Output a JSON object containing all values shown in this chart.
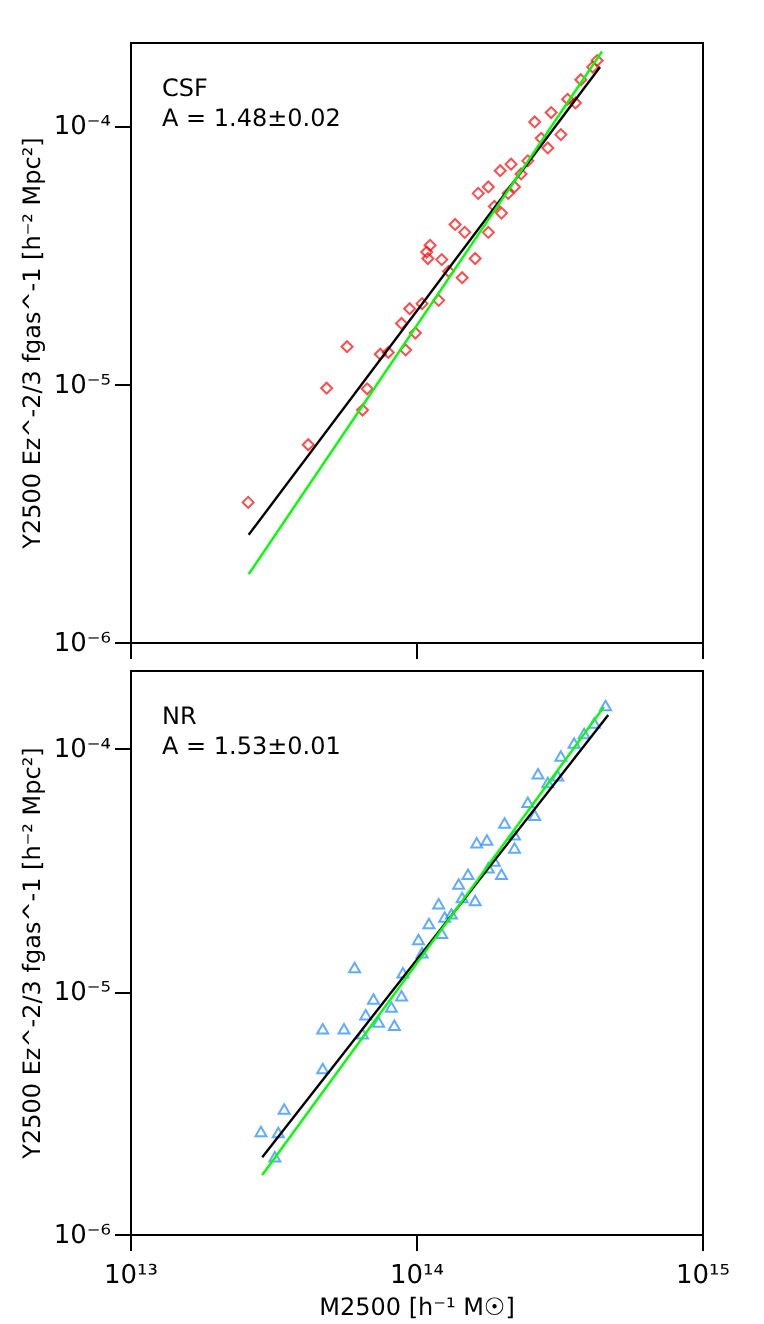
{
  "chart_data": [
    {
      "type": "scatter",
      "annotations": [
        "CSF",
        "A = 1.48±0.02"
      ],
      "ylabel": "Y2500 Ez^-2/3 fgas^-1 [h⁻² Mpc²]",
      "xlim": [
        10000000000000.0,
        1000000000000000.0
      ],
      "ylim": [
        1e-06,
        0.00021
      ],
      "log": "xy",
      "grid": false,
      "legend": false,
      "tick_labels": "y",
      "xticks": [
        10000000000000.0,
        100000000000000.0,
        1000000000000000.0
      ],
      "yticks": [
        {
          "value": 1e-06,
          "label": "10⁻⁶"
        },
        {
          "value": 1e-05,
          "label": "10⁻⁵"
        },
        {
          "value": 0.0001,
          "label": "10⁻⁴"
        }
      ],
      "series": [
        {
          "marker": "diamond",
          "color": "#ff0000",
          "x": [
            25900000000000.0,
            42000000000000.0,
            48700000000000.0,
            57400000000000.0,
            65000000000000.0,
            67500000000000.0,
            75000000000000.0,
            92000000000000.0,
            80000000000000.0,
            99500000000000.0,
            95000000000000.0,
            109000000000000.0,
            112000000000000.0,
            110000000000000.0,
            123000000000000.0,
            137000000000000.0,
            145000000000000.0,
            120000000000000.0,
            165000000000000.0,
            197000000000000.0,
            210000000000000.0,
            179000000000000.0,
            161000000000000.0,
            199000000000000.0,
            221000000000000.0,
            246000000000000.0,
            260000000000000.0,
            274000000000000.0,
            297000000000000.0,
            321000000000000.0,
            339000000000000.0,
            361000000000000.0,
            377000000000000.0,
            430000000000000.0,
            415000000000000.0,
            233000000000000.0,
            188000000000000.0,
            148000000000000.0,
            130000000000000.0,
            105000000000000.0,
            89000000000000.0,
            289000000000000.0,
            179000000000000.0,
            215000000000000.0
          ],
          "values": [
            3.47e-06,
            5.8e-06,
            9.6e-06,
            1.39e-05,
            7.9e-06,
            9.55e-06,
            1.3e-05,
            1.35e-05,
            1.32e-05,
            1.57e-05,
            1.95e-05,
            3.23e-05,
            3.43e-05,
            3.05e-05,
            3.02e-05,
            4.13e-05,
            2.57e-05,
            2.1e-05,
            5.45e-05,
            6.67e-05,
            5.45e-05,
            3.85e-05,
            3.05e-05,
            4.57e-05,
            5.77e-05,
            7.28e-05,
            0.000103,
            8.9e-05,
            0.000112,
            9.2e-05,
            0.000126,
            0.000122,
            0.00015,
            0.000178,
            0.000168,
            6.48e-05,
            4.85e-05,
            3.85e-05,
            2.72e-05,
            2.04e-05,
            1.71e-05,
            8.17e-05,
            5.77e-05,
            7.07e-05
          ]
        },
        {
          "type": "line",
          "line_style": "solid",
          "color": "#000000",
          "x": [
            26000000000000.0,
            440000000000000.0
          ],
          "values": [
            2.6e-06,
            0.000168
          ]
        },
        {
          "type": "line",
          "line_style": "solid",
          "color": "#00ff00",
          "x": [
            26000000000000.0,
            447000000000000.0
          ],
          "values": [
            1.83e-06,
            0.000193
          ]
        }
      ]
    },
    {
      "type": "scatter",
      "annotations": [
        "NR",
        "A = 1.53±0.01"
      ],
      "xlabel": "M2500 [h⁻¹ M☉]",
      "ylabel": "Y2500 Ez^-2/3 fgas^-1 [h⁻² Mpc²]",
      "xlim": [
        10000000000000.0,
        1000000000000000.0
      ],
      "ylim": [
        1e-06,
        0.00021
      ],
      "log": "xy",
      "grid": false,
      "legend": false,
      "xticks": [
        {
          "value": 10000000000000.0,
          "label": "10¹³"
        },
        {
          "value": 100000000000000.0,
          "label": "10¹⁴"
        },
        {
          "value": 1000000000000000.0,
          "label": "10¹⁵"
        }
      ],
      "yticks": [
        {
          "value": 1e-06,
          "label": "10⁻⁶"
        },
        {
          "value": 1e-05,
          "label": "10⁻⁵"
        },
        {
          "value": 0.0001,
          "label": "10⁻⁴"
        }
      ],
      "series": [
        {
          "marker": "triangle",
          "color": "#1e88ff",
          "x": [
            28700000000000.0,
            33000000000000.0,
            32100000000000.0,
            34600000000000.0,
            47200000000000.0,
            47200000000000.0,
            56000000000000.0,
            61000000000000.0,
            65000000000000.0,
            66700000000000.0,
            71000000000000.0,
            74000000000000.0,
            82000000000000.0,
            84000000000000.0,
            89000000000000.0,
            90000000000000.0,
            102000000000000.0,
            105000000000000.0,
            111000000000000.0,
            120000000000000.0,
            123000000000000.0,
            133000000000000.0,
            141000000000000.0,
            152000000000000.0,
            163000000000000.0,
            177000000000000.0,
            161000000000000.0,
            188000000000000.0,
            204000000000000.0,
            221000000000000.0,
            199000000000000.0,
            246000000000000.0,
            267000000000000.0,
            260000000000000.0,
            289000000000000.0,
            321000000000000.0,
            313000000000000.0,
            357000000000000.0,
            387000000000000.0,
            420000000000000.0,
            460000000000000.0,
            221000000000000.0,
            179000000000000.0,
            145000000000000.0,
            126000000000000.0
          ],
          "values": [
            2.64e-06,
            2.62e-06,
            2.08e-06,
            3.27e-06,
            4.8e-06,
            7e-06,
            7e-06,
            1.25e-05,
            6.67e-06,
            8e-06,
            9.28e-06,
            7.46e-06,
            8.6e-06,
            7.23e-06,
            9.57e-06,
            1.19e-05,
            1.63e-05,
            1.44e-05,
            1.9e-05,
            2.29e-05,
            1.73e-05,
            2.08e-05,
            2.76e-05,
            3.03e-05,
            4.08e-05,
            4.19e-05,
            2.36e-05,
            3.43e-05,
            4.92e-05,
            4.4e-05,
            3.03e-05,
            6e-05,
            7.85e-05,
            5.3e-05,
            7.23e-05,
            9.29e-05,
            7.7e-05,
            0.000105,
            0.000115,
            0.000127,
            0.00015,
            3.88e-05,
            3.22e-05,
            2.43e-05,
            2.02e-05
          ]
        },
        {
          "type": "line",
          "line_style": "solid",
          "color": "#000000",
          "x": [
            29000000000000.0,
            470000000000000.0
          ],
          "values": [
            2.07e-06,
            0.000137
          ]
        },
        {
          "type": "line",
          "line_style": "solid",
          "color": "#00ff00",
          "x": [
            29000000000000.0,
            454000000000000.0
          ],
          "values": [
            1.75e-06,
            0.000148
          ]
        }
      ]
    }
  ]
}
